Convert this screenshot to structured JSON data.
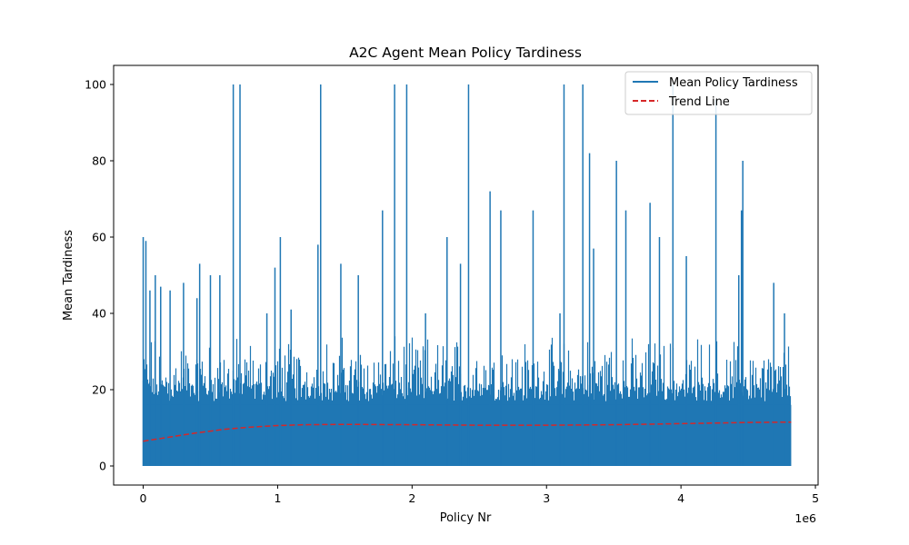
{
  "chart_data": {
    "type": "line",
    "title": "A2C Agent Mean Policy Tardiness",
    "xlabel": "Policy Nr",
    "ylabel": "Mean Tardiness",
    "x_offset_label": "1e6",
    "xlim": [
      -0.22,
      5.02
    ],
    "ylim": [
      -5,
      105
    ],
    "x_data_max": 4.82,
    "x_ticks": [
      0,
      1,
      2,
      3,
      4,
      5
    ],
    "x_tick_labels": [
      "0",
      "1",
      "2",
      "3",
      "4",
      "5"
    ],
    "y_ticks": [
      0,
      20,
      40,
      60,
      80,
      100
    ],
    "y_tick_labels": [
      "0",
      "20",
      "40",
      "60",
      "80",
      "100"
    ],
    "grid": false,
    "legend_position": "upper right",
    "colors": {
      "series": "#1f77b4",
      "trend": "#d62728"
    },
    "series": [
      {
        "name": "Mean Policy Tardiness",
        "style": "solid",
        "note": "dense noisy series, typical range 0-30; peaks listed",
        "peaks": [
          {
            "x": 0.0,
            "y": 60
          },
          {
            "x": 0.02,
            "y": 59
          },
          {
            "x": 0.05,
            "y": 46
          },
          {
            "x": 0.09,
            "y": 50
          },
          {
            "x": 0.13,
            "y": 47
          },
          {
            "x": 0.2,
            "y": 46
          },
          {
            "x": 0.3,
            "y": 48
          },
          {
            "x": 0.4,
            "y": 44
          },
          {
            "x": 0.42,
            "y": 53
          },
          {
            "x": 0.5,
            "y": 50
          },
          {
            "x": 0.57,
            "y": 50
          },
          {
            "x": 0.67,
            "y": 100
          },
          {
            "x": 0.72,
            "y": 100
          },
          {
            "x": 0.92,
            "y": 40
          },
          {
            "x": 0.98,
            "y": 52
          },
          {
            "x": 1.02,
            "y": 60
          },
          {
            "x": 1.1,
            "y": 41
          },
          {
            "x": 1.3,
            "y": 58
          },
          {
            "x": 1.32,
            "y": 100
          },
          {
            "x": 1.47,
            "y": 53
          },
          {
            "x": 1.6,
            "y": 50
          },
          {
            "x": 1.78,
            "y": 67
          },
          {
            "x": 1.87,
            "y": 100
          },
          {
            "x": 1.96,
            "y": 100
          },
          {
            "x": 2.1,
            "y": 40
          },
          {
            "x": 2.26,
            "y": 60
          },
          {
            "x": 2.36,
            "y": 53
          },
          {
            "x": 2.42,
            "y": 100
          },
          {
            "x": 2.58,
            "y": 72
          },
          {
            "x": 2.66,
            "y": 67
          },
          {
            "x": 2.9,
            "y": 67
          },
          {
            "x": 3.1,
            "y": 40
          },
          {
            "x": 3.13,
            "y": 100
          },
          {
            "x": 3.27,
            "y": 100
          },
          {
            "x": 3.32,
            "y": 82
          },
          {
            "x": 3.35,
            "y": 57
          },
          {
            "x": 3.52,
            "y": 80
          },
          {
            "x": 3.59,
            "y": 67
          },
          {
            "x": 3.77,
            "y": 69
          },
          {
            "x": 3.84,
            "y": 60
          },
          {
            "x": 3.94,
            "y": 100
          },
          {
            "x": 4.04,
            "y": 55
          },
          {
            "x": 4.26,
            "y": 96
          },
          {
            "x": 4.43,
            "y": 50
          },
          {
            "x": 4.45,
            "y": 67
          },
          {
            "x": 4.46,
            "y": 80
          },
          {
            "x": 4.69,
            "y": 48
          },
          {
            "x": 4.77,
            "y": 40
          }
        ]
      },
      {
        "name": "Trend Line",
        "style": "dashed",
        "x": [
          0.0,
          0.2,
          0.4,
          0.6,
          0.8,
          1.0,
          1.2,
          1.5,
          2.0,
          2.5,
          3.0,
          3.5,
          4.0,
          4.5,
          4.82
        ],
        "values": [
          6.5,
          7.6,
          8.7,
          9.6,
          10.2,
          10.6,
          10.8,
          10.9,
          10.8,
          10.7,
          10.7,
          10.8,
          11.1,
          11.4,
          11.5
        ]
      }
    ]
  }
}
